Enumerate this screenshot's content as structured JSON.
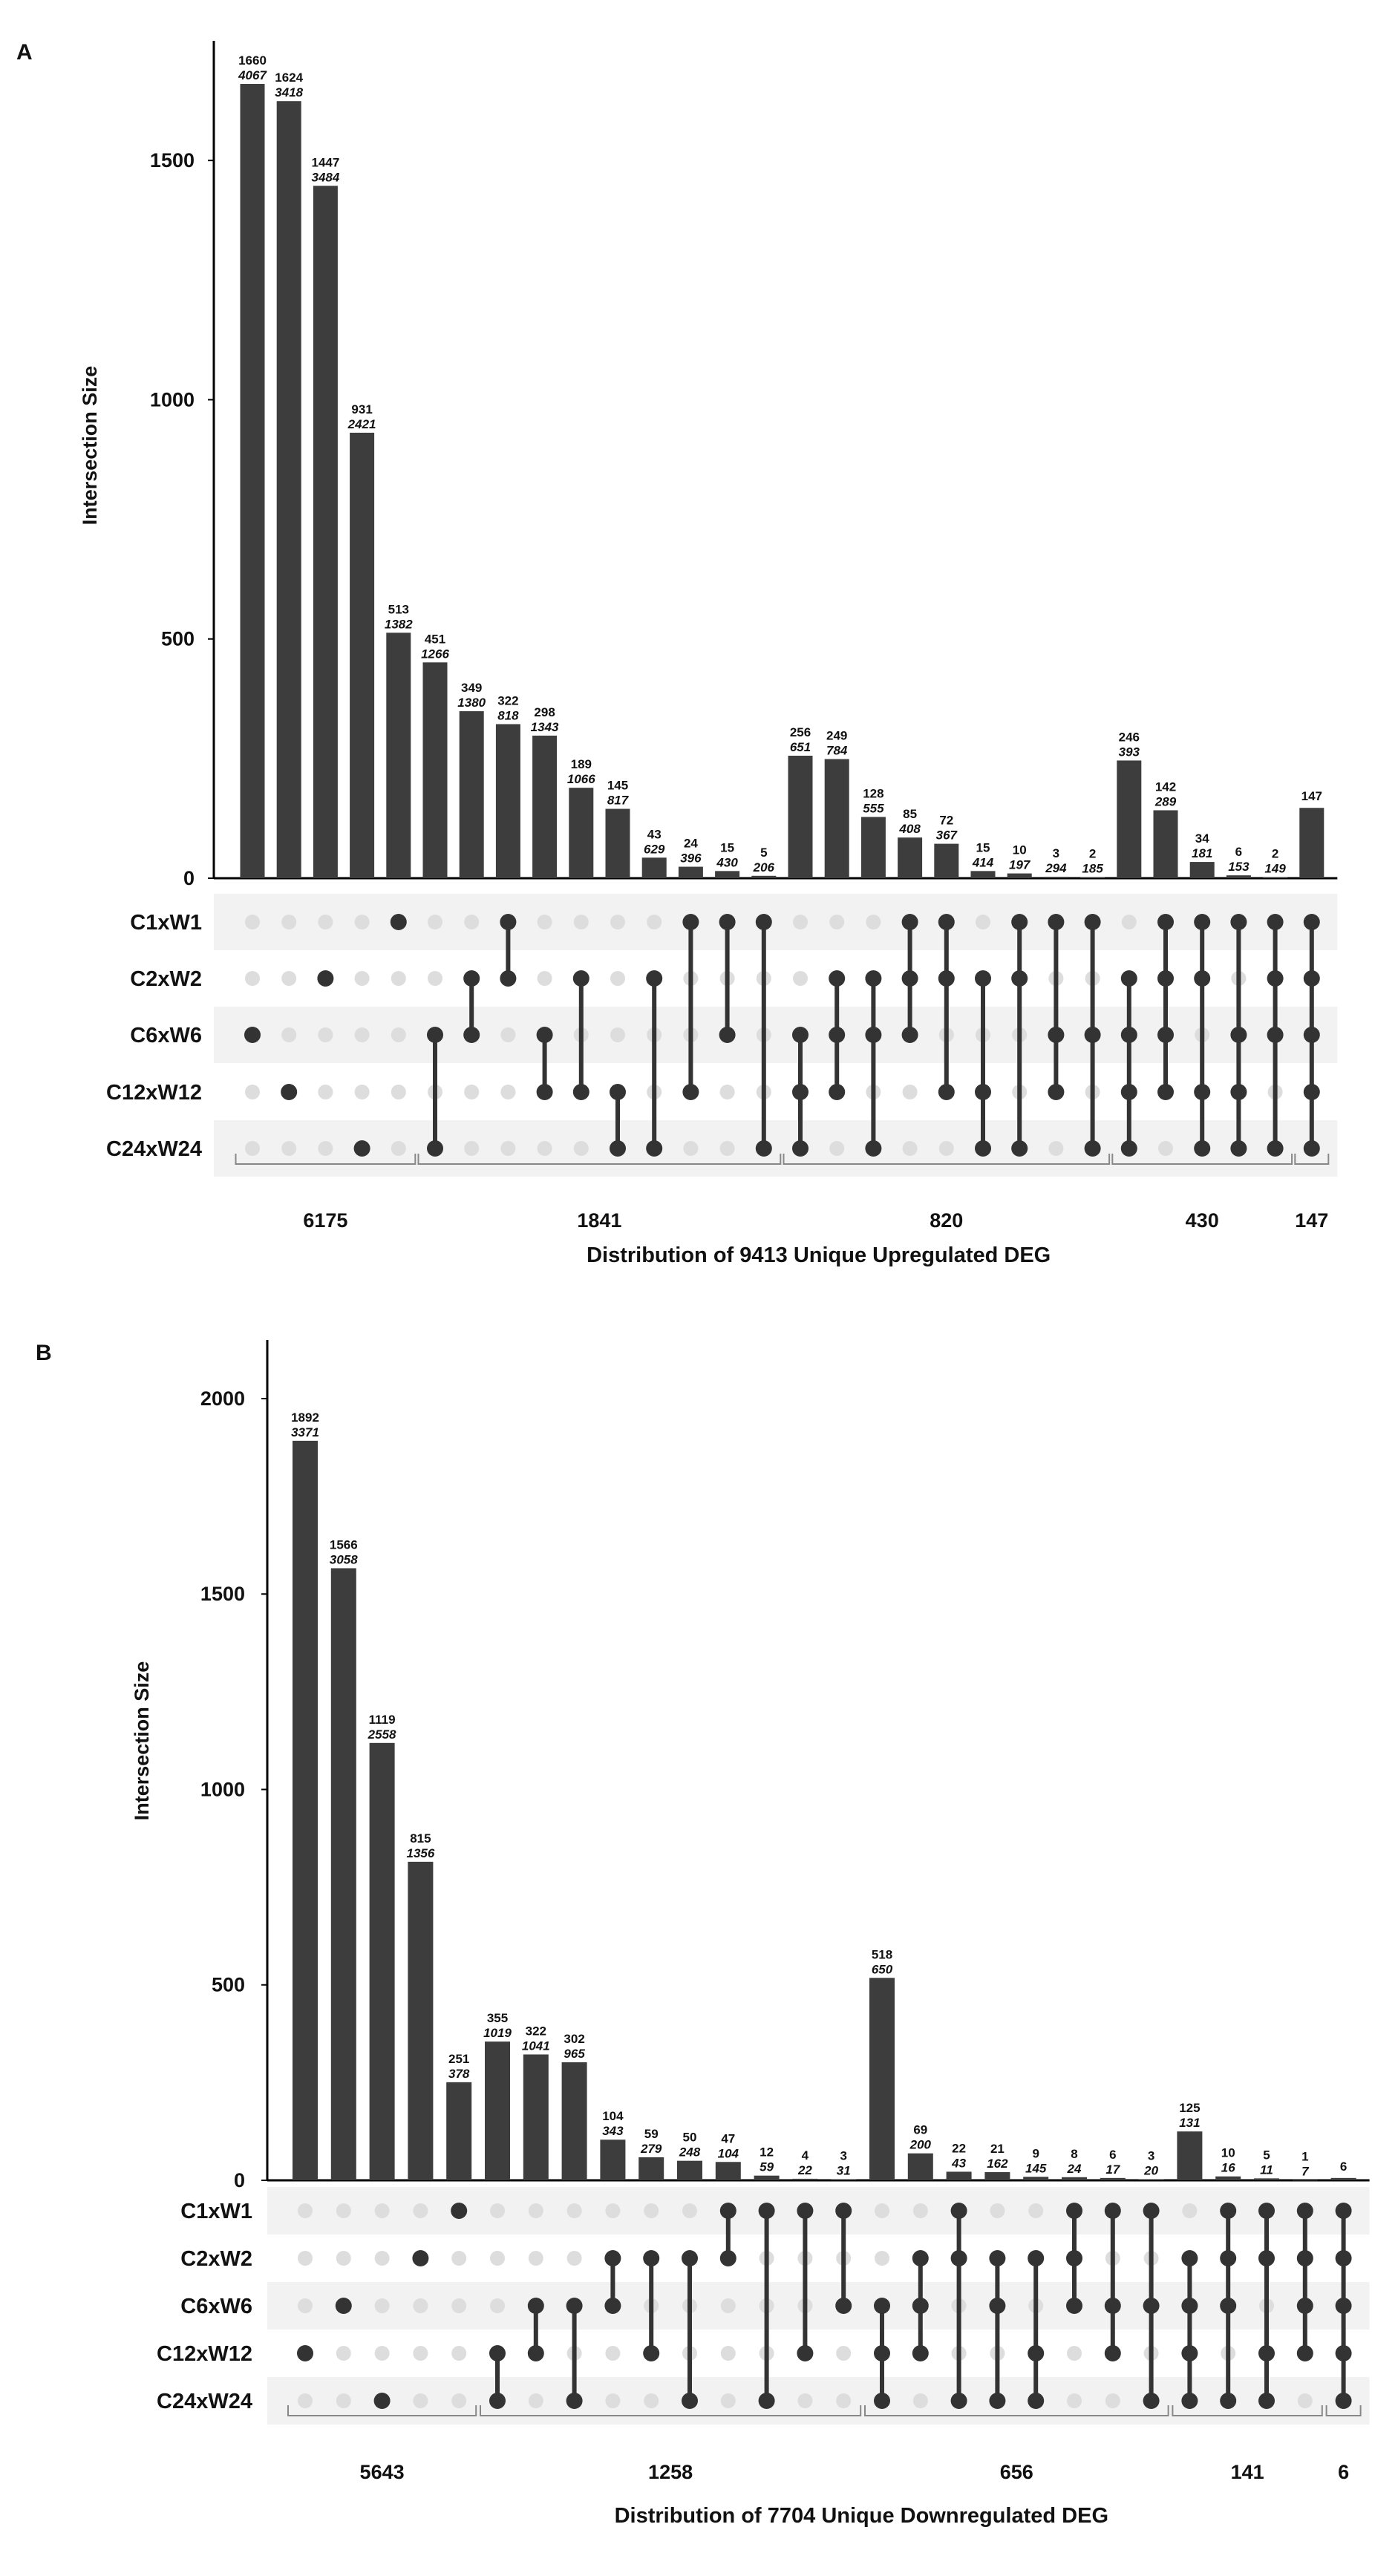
{
  "chart_data": [
    {
      "type": "bar",
      "panel_label": "A",
      "ylabel": "Intersection Size",
      "xlabel": "Distribution of 9413 Unique Upregulated DEG",
      "ylim": [
        0,
        1750
      ],
      "yticks": [
        0,
        500,
        1000,
        1500
      ],
      "sets": [
        "C1xW1",
        "C2xW2",
        "C6xW6",
        "C12xW12",
        "C24xW24"
      ],
      "colors": {
        "bar": "#3d3d3d",
        "dot_active": "#333333",
        "dot_inactive": "#dddddd",
        "band": "#f2f2f2"
      },
      "bars": [
        {
          "value": 1660,
          "label": "1660",
          "label2": "4067",
          "sets": [
            2
          ]
        },
        {
          "value": 1624,
          "label": "1624",
          "label2": "3418",
          "sets": [
            3
          ]
        },
        {
          "value": 1447,
          "label": "1447",
          "label2": "3484",
          "sets": [
            1
          ]
        },
        {
          "value": 931,
          "label": "931",
          "label2": "2421",
          "sets": [
            4
          ]
        },
        {
          "value": 513,
          "label": "513",
          "label2": "1382",
          "sets": [
            0
          ]
        },
        {
          "value": 451,
          "label": "451",
          "label2": "1266",
          "sets": [
            2,
            4
          ]
        },
        {
          "value": 349,
          "label": "349",
          "label2": "1380",
          "sets": [
            1,
            2
          ]
        },
        {
          "value": 322,
          "label": "322",
          "label2": "818",
          "sets": [
            0,
            1
          ]
        },
        {
          "value": 298,
          "label": "298",
          "label2": "1343",
          "sets": [
            2,
            3
          ]
        },
        {
          "value": 189,
          "label": "189",
          "label2": "1066",
          "sets": [
            1,
            3
          ]
        },
        {
          "value": 145,
          "label": "145",
          "label2": "817",
          "sets": [
            3,
            4
          ]
        },
        {
          "value": 43,
          "label": "43",
          "label2": "629",
          "sets": [
            1,
            4
          ]
        },
        {
          "value": 24,
          "label": "24",
          "label2": "396",
          "sets": [
            0,
            3
          ]
        },
        {
          "value": 15,
          "label": "15",
          "label2": "430",
          "sets": [
            0,
            2
          ]
        },
        {
          "value": 5,
          "label": "5",
          "label2": "206",
          "sets": [
            0,
            4
          ]
        },
        {
          "value": 256,
          "label": "256",
          "label2": "651",
          "sets": [
            2,
            3,
            4
          ]
        },
        {
          "value": 249,
          "label": "249",
          "label2": "784",
          "sets": [
            1,
            2,
            3
          ]
        },
        {
          "value": 128,
          "label": "128",
          "label2": "555",
          "sets": [
            1,
            2,
            4
          ]
        },
        {
          "value": 85,
          "label": "85",
          "label2": "408",
          "sets": [
            0,
            1,
            2
          ]
        },
        {
          "value": 72,
          "label": "72",
          "label2": "367",
          "sets": [
            0,
            1,
            3
          ]
        },
        {
          "value": 15,
          "label": "15",
          "label2": "414",
          "sets": [
            1,
            3,
            4
          ]
        },
        {
          "value": 10,
          "label": "10",
          "label2": "197",
          "sets": [
            0,
            1,
            4
          ]
        },
        {
          "value": 3,
          "label": "3",
          "label2": "294",
          "sets": [
            0,
            2,
            3
          ]
        },
        {
          "value": 2,
          "label": "2",
          "label2": "185",
          "sets": [
            0,
            2,
            4
          ]
        },
        {
          "value": 246,
          "label": "246",
          "label2": "393",
          "sets": [
            1,
            2,
            3,
            4
          ]
        },
        {
          "value": 142,
          "label": "142",
          "label2": "289",
          "sets": [
            0,
            1,
            2,
            3
          ]
        },
        {
          "value": 34,
          "label": "34",
          "label2": "181",
          "sets": [
            0,
            1,
            3,
            4
          ]
        },
        {
          "value": 6,
          "label": "6",
          "label2": "153",
          "sets": [
            0,
            2,
            3,
            4
          ]
        },
        {
          "value": 2,
          "label": "2",
          "label2": "149",
          "sets": [
            0,
            1,
            2,
            4
          ]
        },
        {
          "value": 147,
          "label": "147",
          "label2": "",
          "sets": [
            0,
            1,
            2,
            3,
            4
          ]
        }
      ],
      "groups": [
        {
          "label": "6175",
          "from": 0,
          "to": 4
        },
        {
          "label": "1841",
          "from": 5,
          "to": 14
        },
        {
          "label": "820",
          "from": 15,
          "to": 23
        },
        {
          "label": "430",
          "from": 24,
          "to": 28
        },
        {
          "label": "147",
          "from": 29,
          "to": 29
        }
      ]
    },
    {
      "type": "bar",
      "panel_label": "B",
      "ylabel": "Intersection Size",
      "xlabel": "Distribution of 7704 Unique Downregulated DEG",
      "ylim": [
        0,
        2150
      ],
      "yticks": [
        0,
        500,
        1000,
        1500,
        2000
      ],
      "sets": [
        "C1xW1",
        "C2xW2",
        "C6xW6",
        "C12xW12",
        "C24xW24"
      ],
      "colors": {
        "bar": "#3d3d3d",
        "dot_active": "#333333",
        "dot_inactive": "#dddddd",
        "band": "#f2f2f2"
      },
      "bars": [
        {
          "value": 1892,
          "label": "1892",
          "label2": "3371",
          "sets": [
            3
          ]
        },
        {
          "value": 1566,
          "label": "1566",
          "label2": "3058",
          "sets": [
            2
          ]
        },
        {
          "value": 1119,
          "label": "1119",
          "label2": "2558",
          "sets": [
            4
          ]
        },
        {
          "value": 815,
          "label": "815",
          "label2": "1356",
          "sets": [
            1
          ]
        },
        {
          "value": 251,
          "label": "251",
          "label2": "378",
          "sets": [
            0
          ]
        },
        {
          "value": 355,
          "label": "355",
          "label2": "1019",
          "sets": [
            3,
            4
          ]
        },
        {
          "value": 322,
          "label": "322",
          "label2": "1041",
          "sets": [
            2,
            3
          ]
        },
        {
          "value": 302,
          "label": "302",
          "label2": "965",
          "sets": [
            2,
            4
          ]
        },
        {
          "value": 104,
          "label": "104",
          "label2": "343",
          "sets": [
            1,
            2
          ]
        },
        {
          "value": 59,
          "label": "59",
          "label2": "279",
          "sets": [
            1,
            3
          ]
        },
        {
          "value": 50,
          "label": "50",
          "label2": "248",
          "sets": [
            1,
            4
          ]
        },
        {
          "value": 47,
          "label": "47",
          "label2": "104",
          "sets": [
            0,
            1
          ]
        },
        {
          "value": 12,
          "label": "12",
          "label2": "59",
          "sets": [
            0,
            4
          ]
        },
        {
          "value": 4,
          "label": "4",
          "label2": "22",
          "sets": [
            0,
            3
          ]
        },
        {
          "value": 3,
          "label": "3",
          "label2": "31",
          "sets": [
            0,
            2
          ]
        },
        {
          "value": 518,
          "label": "518",
          "label2": "650",
          "sets": [
            2,
            3,
            4
          ]
        },
        {
          "value": 69,
          "label": "69",
          "label2": "200",
          "sets": [
            1,
            2,
            3
          ]
        },
        {
          "value": 22,
          "label": "22",
          "label2": "43",
          "sets": [
            0,
            1,
            4
          ]
        },
        {
          "value": 21,
          "label": "21",
          "label2": "162",
          "sets": [
            1,
            2,
            4
          ]
        },
        {
          "value": 9,
          "label": "9",
          "label2": "145",
          "sets": [
            1,
            3,
            4
          ]
        },
        {
          "value": 8,
          "label": "8",
          "label2": "24",
          "sets": [
            0,
            1,
            2
          ]
        },
        {
          "value": 6,
          "label": "6",
          "label2": "17",
          "sets": [
            0,
            2,
            3
          ]
        },
        {
          "value": 3,
          "label": "3",
          "label2": "20",
          "sets": [
            0,
            2,
            4
          ]
        },
        {
          "value": 125,
          "label": "125",
          "label2": "131",
          "sets": [
            1,
            2,
            3,
            4
          ]
        },
        {
          "value": 10,
          "label": "10",
          "label2": "16",
          "sets": [
            0,
            1,
            2,
            4
          ]
        },
        {
          "value": 5,
          "label": "5",
          "label2": "11",
          "sets": [
            0,
            1,
            3,
            4
          ]
        },
        {
          "value": 1,
          "label": "1",
          "label2": "7",
          "sets": [
            0,
            1,
            2,
            3
          ]
        },
        {
          "value": 6,
          "label": "6",
          "label2": "",
          "sets": [
            0,
            1,
            2,
            3,
            4
          ]
        }
      ],
      "groups": [
        {
          "label": "5643",
          "from": 0,
          "to": 4
        },
        {
          "label": "1258",
          "from": 5,
          "to": 14
        },
        {
          "label": "656",
          "from": 15,
          "to": 22
        },
        {
          "label": "141",
          "from": 23,
          "to": 26
        },
        {
          "label": "6",
          "from": 27,
          "to": 27
        }
      ]
    }
  ]
}
